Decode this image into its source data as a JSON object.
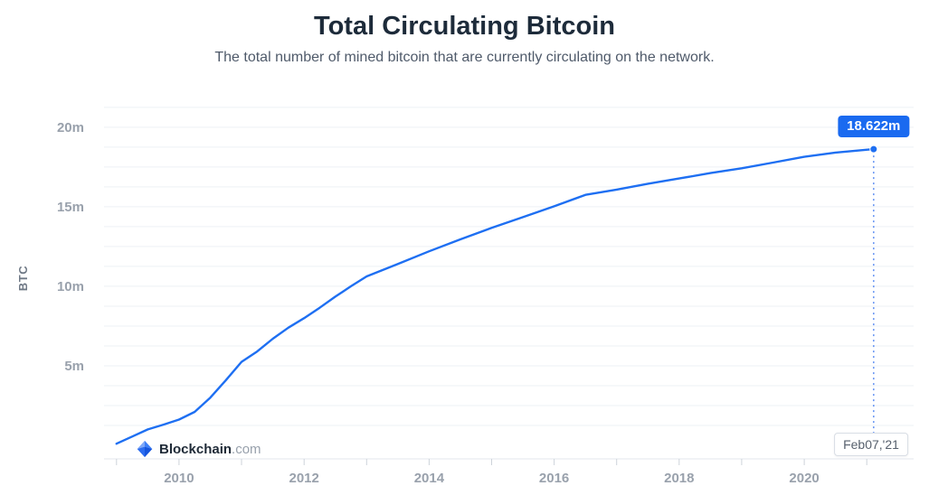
{
  "header": {
    "title": "Total Circulating Bitcoin",
    "subtitle": "The total number of mined bitcoin that are currently circulating on the network."
  },
  "watermark": {
    "brand": "Blockchain",
    "suffix": ".com"
  },
  "tooltip": {
    "value_label": "18.622m",
    "date_label": "Feb07,'21"
  },
  "chart_data": {
    "type": "line",
    "title": "Total Circulating Bitcoin",
    "subtitle": "The total number of mined bitcoin that are currently circulating on the network.",
    "xlabel": "",
    "ylabel": "BTC",
    "unit": "millions of BTC",
    "legend": "none",
    "grid": "horizontal",
    "grid_step": 1.25,
    "xlim": [
      2008.8,
      2021.75
    ],
    "ylim": [
      0,
      21.3
    ],
    "x": [
      2009.0,
      2009.25,
      2009.5,
      2009.75,
      2010.0,
      2010.25,
      2010.5,
      2010.75,
      2011.0,
      2011.25,
      2011.5,
      2011.75,
      2012.0,
      2012.25,
      2012.5,
      2012.75,
      2013.0,
      2013.5,
      2014.0,
      2014.5,
      2015.0,
      2015.5,
      2016.0,
      2016.5,
      2017.0,
      2017.5,
      2018.0,
      2018.5,
      2019.0,
      2019.5,
      2020.0,
      2020.5,
      2021.11
    ],
    "values": [
      0.1,
      0.55,
      1.0,
      1.3,
      1.62,
      2.1,
      3.0,
      4.1,
      5.25,
      5.9,
      6.7,
      7.4,
      8.0,
      8.65,
      9.35,
      10.0,
      10.62,
      11.4,
      12.2,
      12.95,
      13.67,
      14.35,
      15.03,
      15.75,
      16.08,
      16.45,
      16.78,
      17.12,
      17.42,
      17.78,
      18.14,
      18.41,
      18.622
    ],
    "yticks": [
      {
        "v": 5,
        "label": "5m"
      },
      {
        "v": 10,
        "label": "10m"
      },
      {
        "v": 15,
        "label": "15m"
      },
      {
        "v": 20,
        "label": "20m"
      }
    ],
    "xticks": [
      {
        "v": 2010,
        "label": "2010"
      },
      {
        "v": 2012,
        "label": "2012"
      },
      {
        "v": 2014,
        "label": "2014"
      },
      {
        "v": 2016,
        "label": "2016"
      },
      {
        "v": 2018,
        "label": "2018"
      },
      {
        "v": 2020,
        "label": "2020"
      }
    ],
    "last_point": {
      "x": 2021.11,
      "value": 18.622,
      "value_label": "18.622m",
      "date_label": "Feb07,'21"
    },
    "colors": {
      "line": "#1e6ff2",
      "grid": "#eef1f5",
      "axis_line": "#e3e7ec",
      "tick": "#cdd3da",
      "axis_text": "#99a1ac",
      "tooltip_bg": "#1a6af0",
      "crosshair": "#6a97f3"
    }
  }
}
